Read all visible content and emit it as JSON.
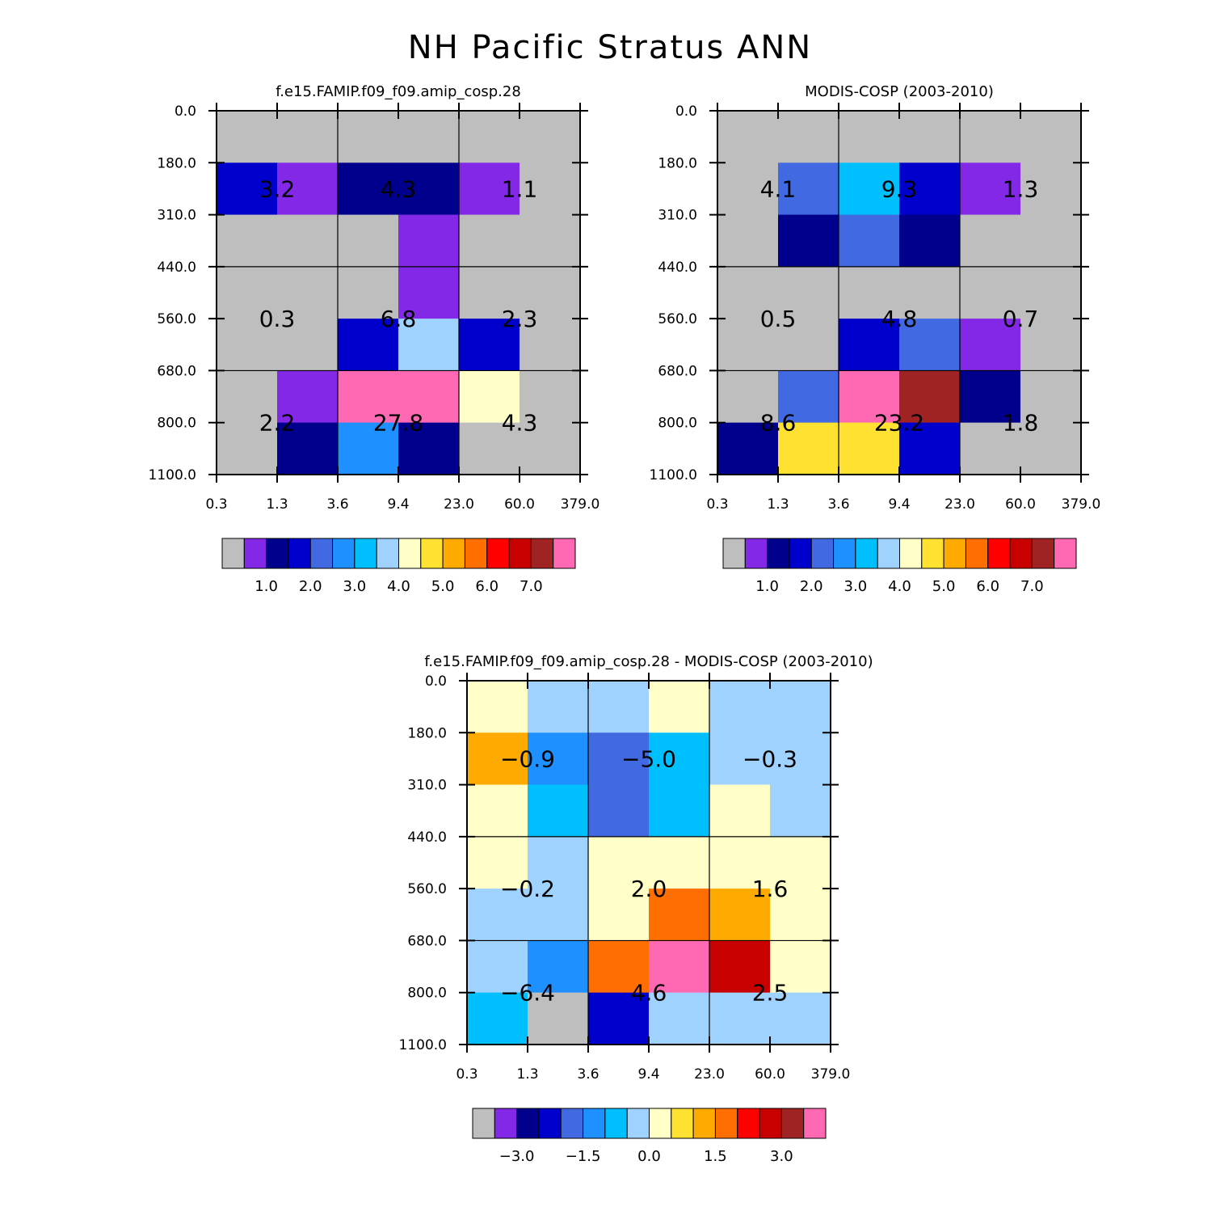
{
  "chart_data": {
    "title": "NH Pacific Stratus ANN",
    "type": "heatmap",
    "x_tick_labels": [
      "0.3",
      "1.3",
      "3.6",
      "9.4",
      "23.0",
      "60.0",
      "379.0"
    ],
    "y_tick_labels": [
      "0.0",
      "180.0",
      "310.0",
      "440.0",
      "560.0",
      "680.0",
      "800.0",
      "1100.0"
    ],
    "abs_palette": [
      "#bebebe",
      "#8228e6",
      "#00008c",
      "#0000cd",
      "#4169e1",
      "#1e90ff",
      "#00bfff",
      "#a0d2ff",
      "#ffffc8",
      "#ffe132",
      "#ffaa00",
      "#ff6e00",
      "#ff0000",
      "#c80000",
      "#a02323",
      "#ff69b4"
    ],
    "abs_colorbar_labels": [
      "1.0",
      "2.0",
      "3.0",
      "4.0",
      "5.0",
      "6.0",
      "7.0"
    ],
    "diff_colorbar_labels": [
      "−3.0",
      "−1.5",
      "0.0",
      "1.5",
      "3.0"
    ],
    "panels": [
      {
        "title": "f.e15.FAMIP.f09_f09.amip_cosp.28",
        "kind": "abs",
        "cells": [
          [
            0,
            0,
            0,
            0,
            0,
            0
          ],
          [
            3,
            1,
            2,
            2,
            1,
            0
          ],
          [
            0,
            0,
            0,
            1,
            0,
            0
          ],
          [
            0,
            0,
            0,
            1,
            0,
            0
          ],
          [
            0,
            0,
            3,
            7,
            3,
            0
          ],
          [
            0,
            1,
            15,
            15,
            8,
            0
          ],
          [
            0,
            2,
            5,
            2,
            0,
            0
          ]
        ],
        "block_values": [
          [
            "3.2",
            "4.3",
            "1.1"
          ],
          [
            "0.3",
            "6.8",
            "2.3"
          ],
          [
            "2.2",
            "27.8",
            "4.3"
          ]
        ]
      },
      {
        "title": "MODIS-COSP (2003-2010)",
        "kind": "abs",
        "cells": [
          [
            0,
            0,
            0,
            0,
            0,
            0
          ],
          [
            0,
            4,
            6,
            3,
            1,
            0
          ],
          [
            0,
            2,
            4,
            2,
            0,
            0
          ],
          [
            0,
            0,
            0,
            0,
            0,
            0
          ],
          [
            0,
            0,
            3,
            4,
            1,
            0
          ],
          [
            0,
            4,
            15,
            14,
            2,
            0
          ],
          [
            2,
            9,
            9,
            3,
            0,
            0
          ]
        ],
        "block_values": [
          [
            "4.1",
            "9.3",
            "1.3"
          ],
          [
            "0.5",
            "4.8",
            "0.7"
          ],
          [
            "8.6",
            "23.2",
            "1.8"
          ]
        ]
      },
      {
        "title": "f.e15.FAMIP.f09_f09.amip_cosp.28 - MODIS-COSP (2003-2010)",
        "kind": "diff",
        "cells": [
          [
            8,
            7,
            7,
            8,
            7,
            7
          ],
          [
            10,
            5,
            4,
            6,
            7,
            7
          ],
          [
            8,
            6,
            4,
            6,
            8,
            7
          ],
          [
            8,
            7,
            8,
            8,
            8,
            8
          ],
          [
            7,
            7,
            8,
            11,
            10,
            8
          ],
          [
            7,
            5,
            11,
            15,
            13,
            8
          ],
          [
            6,
            0,
            3,
            7,
            7,
            7
          ]
        ],
        "block_values": [
          [
            "−0.9",
            "−5.0",
            "−0.3"
          ],
          [
            "−0.2",
            "2.0",
            "1.6"
          ],
          [
            "−6.4",
            "4.6",
            "2.5"
          ]
        ]
      }
    ]
  }
}
